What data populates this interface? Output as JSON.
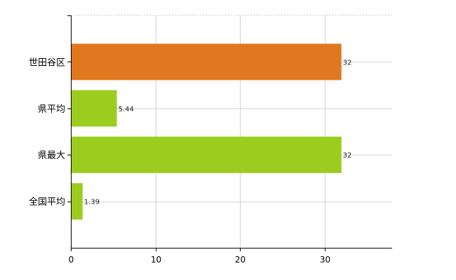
{
  "chart_data": {
    "type": "bar",
    "orientation": "horizontal",
    "title": "",
    "xlabel": "",
    "ylabel": "",
    "categories": [
      "世田谷区",
      "県平均",
      "県最大",
      "全国平均"
    ],
    "values": [
      32,
      5.44,
      32,
      1.39
    ],
    "data_labels": [
      "32",
      "5.44",
      "32",
      "1.39"
    ],
    "bar_colors": [
      "#e07820",
      "#9acd1e",
      "#9acd1e",
      "#9acd1e"
    ],
    "xlim": [
      0,
      38
    ],
    "xticks": [
      0,
      10,
      20,
      30
    ],
    "grid": true,
    "legend": "none"
  }
}
